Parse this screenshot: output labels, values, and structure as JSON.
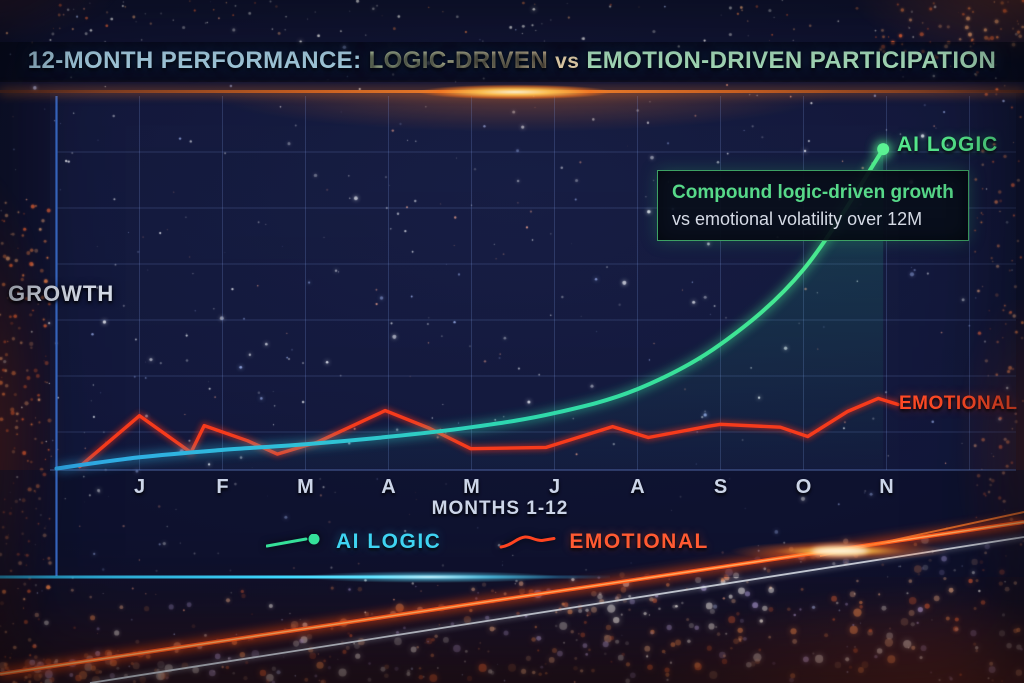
{
  "title": {
    "part1": "12-MONTH PERFORMANCE:",
    "part2": "LOGIC-DRIVEN",
    "vs": "vs",
    "part3": "EMOTION-DRIVEN PARTICIPATION"
  },
  "axis": {
    "y_label": "GROWTH",
    "x_label": "MONTHS 1-12"
  },
  "end_labels": {
    "ai_logic": "AI LOGIC",
    "emotional": "EMOTIONAL"
  },
  "callout": {
    "line1": "Compound logic-driven growth",
    "line2": "vs emotional volatility over 12M"
  },
  "legend": [
    {
      "name": "AI LOGIC",
      "text_color": "#3fd4f2",
      "marker_color": "#35e09a",
      "marker": "line-with-dot"
    },
    {
      "name": "EMOTIONAL",
      "text_color": "#ff5a32",
      "marker_color": "#ff4420",
      "marker": "wavy-line"
    }
  ],
  "colors": {
    "background": "#101331",
    "grid": "rgba(130,160,230,0.22)",
    "axis_blue": "#3c6fd0",
    "logic_line_start": "#38b6e8",
    "logic_line_end": "#4dee8e",
    "emotional_line": "#f63b1c",
    "title_primary": "#a9d2e6",
    "title_mint": "#abe3c0",
    "callout_border": "#3da164",
    "flare_orange": "#ff8c2e",
    "bottom_cyan": "#3fd9ff"
  },
  "chart_data": {
    "type": "line",
    "title": "12-MONTH PERFORMANCE: LOGIC-DRIVEN vs EMOTION-DRIVEN PARTICIPATION",
    "xlabel": "MONTHS 1-12",
    "ylabel": "GROWTH",
    "x_tick_labels": [
      "J",
      "F",
      "M",
      "A",
      "M",
      "J",
      "A",
      "S",
      "O",
      "N"
    ],
    "x_range": [
      0,
      11.6
    ],
    "y_range": [
      0,
      105
    ],
    "grid": true,
    "legend_position": "bottom-center",
    "annotation": {
      "line1": "Compound logic-driven growth",
      "line2": "vs emotional volatility over 12M",
      "anchored_near": "AI LOGIC curve end"
    },
    "series": [
      {
        "name": "AI LOGIC",
        "style": "smooth-exponential",
        "ends_with_dot": true,
        "points": [
          [
            0,
            0
          ],
          [
            1,
            3.5
          ],
          [
            2,
            5.8
          ],
          [
            3,
            7.6
          ],
          [
            4,
            9.9
          ],
          [
            5,
            12.9
          ],
          [
            6,
            17.3
          ],
          [
            7,
            24.8
          ],
          [
            8,
            38.8
          ],
          [
            9,
            62.2
          ],
          [
            9.96,
            99.8
          ]
        ]
      },
      {
        "name": "EMOTIONAL",
        "style": "jagged",
        "ends_with_dot": false,
        "points": [
          [
            0.28,
            0.6
          ],
          [
            1.0,
            16.5
          ],
          [
            1.62,
            5.0
          ],
          [
            1.78,
            13.4
          ],
          [
            2.3,
            8.7
          ],
          [
            2.66,
            4.5
          ],
          [
            3.14,
            8.2
          ],
          [
            3.96,
            18.1
          ],
          [
            4.5,
            12.5
          ],
          [
            4.99,
            6.2
          ],
          [
            5.9,
            6.6
          ],
          [
            6.7,
            13.1
          ],
          [
            7.13,
            9.7
          ],
          [
            7.85,
            13.2
          ],
          [
            8.0,
            13.8
          ],
          [
            8.72,
            12.9
          ],
          [
            9.05,
            10.0
          ],
          [
            9.53,
            17.8
          ],
          [
            9.9,
            21.9
          ],
          [
            10.14,
            20.0
          ]
        ]
      }
    ]
  }
}
